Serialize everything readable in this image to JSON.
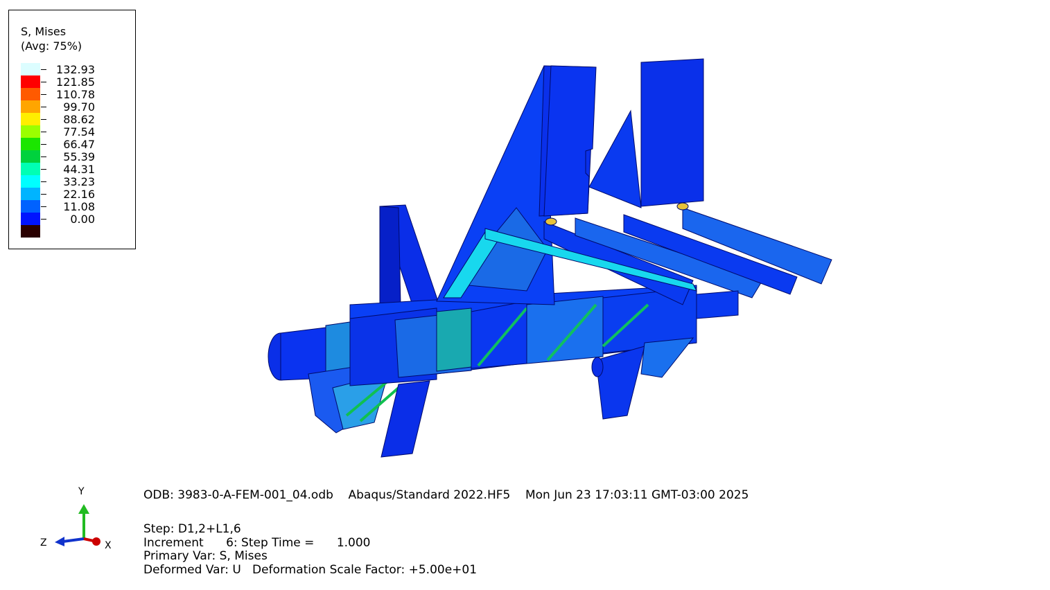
{
  "legend": {
    "title_line1": "S, Mises",
    "title_line2": "(Avg: 75%)",
    "entries": [
      {
        "value": "132.93",
        "color": "#dcfdff"
      },
      {
        "value": "121.85",
        "color": "#ff0000"
      },
      {
        "value": "110.78",
        "color": "#ff5a00"
      },
      {
        "value": "99.70",
        "color": "#ffa500"
      },
      {
        "value": "88.62",
        "color": "#ffee00"
      },
      {
        "value": "77.54",
        "color": "#9bff00"
      },
      {
        "value": "66.47",
        "color": "#1be600"
      },
      {
        "value": "55.39",
        "color": "#00d23d"
      },
      {
        "value": "44.31",
        "color": "#00ffb4"
      },
      {
        "value": "33.23",
        "color": "#00ffff"
      },
      {
        "value": "22.16",
        "color": "#00b4ff"
      },
      {
        "value": "11.08",
        "color": "#0062ff"
      },
      {
        "value": "0.00",
        "color": "#0014ff"
      }
    ],
    "bottom_color": "#2a0000"
  },
  "info": {
    "odb": "ODB: 3983-0-A-FEM-001_04.odb",
    "solver": "Abaqus/Standard 2022.HF5",
    "date": "Mon Jun 23 17:03:11 GMT-03:00 2025",
    "step": "Step: D1,2+L1,6",
    "increment": "Increment      6: Step Time =      1.000",
    "primary_var": "Primary Var: S, Mises",
    "deformed_var": "Deformed Var: U   Deformation Scale Factor: +5.00e+01"
  },
  "triad": {
    "x_label": "X",
    "y_label": "Y",
    "z_label": "Z",
    "x_color": "#cc0000",
    "y_color": "#22bb22",
    "z_color": "#1133cc"
  }
}
